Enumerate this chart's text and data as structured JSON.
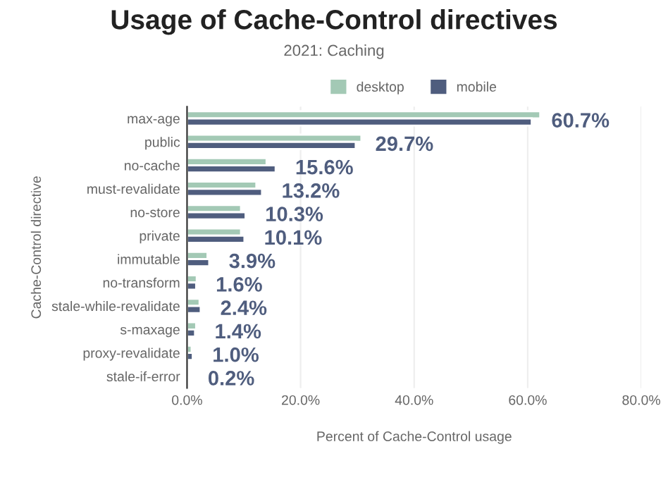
{
  "chart_data": {
    "type": "bar",
    "orientation": "horizontal",
    "title": "Usage of Cache-Control directives",
    "subtitle": "2021: Caching",
    "xlabel": "Percent of Cache-Control usage",
    "ylabel": "Cache-Control directive",
    "categories": [
      "max-age",
      "public",
      "no-cache",
      "must-revalidate",
      "no-store",
      "private",
      "immutable",
      "no-transform",
      "stale-while-revalidate",
      "s-maxage",
      "proxy-revalidate",
      "stale-if-error"
    ],
    "series": [
      {
        "name": "desktop",
        "color": "#a3c9b5",
        "values": [
          62.2,
          30.7,
          14.0,
          12.2,
          9.5,
          9.5,
          3.6,
          1.7,
          2.2,
          1.6,
          0.8,
          null
        ]
      },
      {
        "name": "mobile",
        "color": "#4f5d7e",
        "values": [
          60.7,
          29.7,
          15.6,
          13.2,
          10.3,
          10.1,
          3.9,
          1.6,
          2.4,
          1.4,
          1.0,
          0.2
        ],
        "value_labels": [
          "60.7%",
          "29.7%",
          "15.6%",
          "13.2%",
          "10.3%",
          "10.1%",
          "3.9%",
          "1.6%",
          "2.4%",
          "1.4%",
          "1.0%",
          "0.2%"
        ]
      }
    ],
    "xlim": [
      0,
      80
    ],
    "xticks": [
      {
        "value": 0,
        "label": "0.0%"
      },
      {
        "value": 20,
        "label": "20.0%"
      },
      {
        "value": 40,
        "label": "40.0%"
      },
      {
        "value": 60,
        "label": "60.0%"
      },
      {
        "value": 80,
        "label": "80.0%"
      }
    ],
    "grid": "x",
    "legend": "top"
  }
}
